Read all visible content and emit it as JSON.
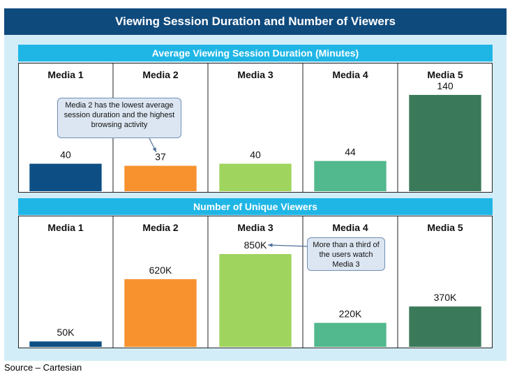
{
  "title": "Viewing Session Duration and Number of Viewers",
  "source": "Source – Cartesian",
  "colors": [
    "#0d4f85",
    "#f7922f",
    "#9fd55e",
    "#52b88d",
    "#3a7a5a"
  ],
  "chart_data": [
    {
      "type": "bar",
      "title": "Average Viewing Session Duration (Minutes)",
      "categories": [
        "Media 1",
        "Media 2",
        "Media 3",
        "Media 4",
        "Media 5"
      ],
      "values": [
        40,
        37,
        40,
        44,
        140
      ],
      "value_labels": [
        "40",
        "37",
        "40",
        "44",
        "140"
      ],
      "ylim": [
        0,
        140
      ],
      "grid": false,
      "annotation": "Media 2 has the lowest average session duration and the highest browsing activity"
    },
    {
      "type": "bar",
      "title": "Number of Unique Viewers",
      "categories": [
        "Media 1",
        "Media 2",
        "Media 3",
        "Media 4",
        "Media 5"
      ],
      "values": [
        50000,
        620000,
        850000,
        220000,
        370000
      ],
      "value_labels": [
        "50K",
        "620K",
        "850K",
        "220K",
        "370K"
      ],
      "ylim": [
        0,
        850000
      ],
      "grid": false,
      "annotation": "More than a third of the users watch Media 3"
    }
  ]
}
